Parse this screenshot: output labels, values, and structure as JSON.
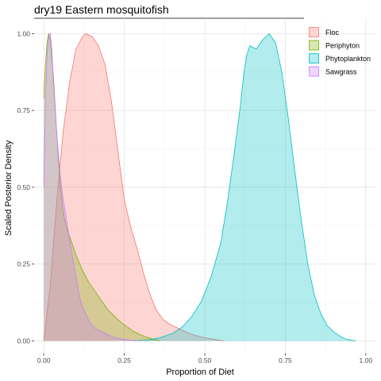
{
  "chart_data": {
    "type": "area",
    "title": "dry19 Eastern mosquitofish",
    "xlabel": "Proportion of Diet",
    "ylabel": "Scaled Posterior Density",
    "xlim": [
      -0.03,
      1.03
    ],
    "ylim": [
      -0.04,
      1.05
    ],
    "x_ticks": [
      0.0,
      0.25,
      0.5,
      0.75,
      1.0
    ],
    "x_tick_labels": [
      "0.00",
      "0.25",
      "0.50",
      "0.75",
      "1.00"
    ],
    "y_ticks": [
      0.0,
      0.25,
      0.5,
      0.75,
      1.0
    ],
    "y_tick_labels": [
      "0.00",
      "0.25",
      "0.50",
      "0.75",
      "1.00"
    ],
    "grid": true,
    "legend_position": "top-right",
    "series": [
      {
        "name": "Floc",
        "fill": "#F8766D",
        "stroke": "#F8766D",
        "points": [
          [
            0.0,
            0.0
          ],
          [
            0.02,
            0.18
          ],
          [
            0.04,
            0.45
          ],
          [
            0.06,
            0.68
          ],
          [
            0.08,
            0.84
          ],
          [
            0.1,
            0.95
          ],
          [
            0.12,
            0.99
          ],
          [
            0.13,
            1.0
          ],
          [
            0.15,
            0.99
          ],
          [
            0.17,
            0.96
          ],
          [
            0.19,
            0.9
          ],
          [
            0.21,
            0.78
          ],
          [
            0.23,
            0.62
          ],
          [
            0.25,
            0.46
          ],
          [
            0.27,
            0.37
          ],
          [
            0.29,
            0.3
          ],
          [
            0.31,
            0.22
          ],
          [
            0.33,
            0.15
          ],
          [
            0.35,
            0.1
          ],
          [
            0.37,
            0.07
          ],
          [
            0.39,
            0.055
          ],
          [
            0.41,
            0.045
          ],
          [
            0.43,
            0.035
          ],
          [
            0.45,
            0.025
          ],
          [
            0.47,
            0.018
          ],
          [
            0.5,
            0.01
          ],
          [
            0.53,
            0.005
          ],
          [
            0.56,
            0.0
          ]
        ]
      },
      {
        "name": "Periphyton",
        "fill": "#7CAE00",
        "stroke": "#7CAE00",
        "points": [
          [
            0.0,
            0.79
          ],
          [
            0.005,
            0.9
          ],
          [
            0.01,
            0.97
          ],
          [
            0.015,
            1.0
          ],
          [
            0.02,
            0.98
          ],
          [
            0.03,
            0.86
          ],
          [
            0.04,
            0.68
          ],
          [
            0.05,
            0.52
          ],
          [
            0.06,
            0.42
          ],
          [
            0.07,
            0.37
          ],
          [
            0.08,
            0.34
          ],
          [
            0.09,
            0.31
          ],
          [
            0.1,
            0.28
          ],
          [
            0.12,
            0.23
          ],
          [
            0.14,
            0.19
          ],
          [
            0.16,
            0.16
          ],
          [
            0.18,
            0.13
          ],
          [
            0.2,
            0.1
          ],
          [
            0.22,
            0.08
          ],
          [
            0.24,
            0.06
          ],
          [
            0.26,
            0.045
          ],
          [
            0.28,
            0.03
          ],
          [
            0.3,
            0.02
          ],
          [
            0.32,
            0.012
          ],
          [
            0.34,
            0.006
          ],
          [
            0.36,
            0.0
          ]
        ]
      },
      {
        "name": "Phytoplankton",
        "fill": "#00BFC4",
        "stroke": "#00BFC4",
        "points": [
          [
            0.28,
            0.0
          ],
          [
            0.32,
            0.003
          ],
          [
            0.36,
            0.01
          ],
          [
            0.4,
            0.025
          ],
          [
            0.43,
            0.045
          ],
          [
            0.46,
            0.08
          ],
          [
            0.49,
            0.13
          ],
          [
            0.52,
            0.21
          ],
          [
            0.55,
            0.32
          ],
          [
            0.57,
            0.45
          ],
          [
            0.59,
            0.6
          ],
          [
            0.61,
            0.76
          ],
          [
            0.62,
            0.86
          ],
          [
            0.63,
            0.93
          ],
          [
            0.64,
            0.96
          ],
          [
            0.66,
            0.95
          ],
          [
            0.68,
            0.98
          ],
          [
            0.7,
            1.0
          ],
          [
            0.72,
            0.97
          ],
          [
            0.74,
            0.87
          ],
          [
            0.76,
            0.72
          ],
          [
            0.78,
            0.55
          ],
          [
            0.8,
            0.39
          ],
          [
            0.82,
            0.25
          ],
          [
            0.84,
            0.15
          ],
          [
            0.86,
            0.09
          ],
          [
            0.88,
            0.05
          ],
          [
            0.9,
            0.03
          ],
          [
            0.92,
            0.015
          ],
          [
            0.94,
            0.005
          ],
          [
            0.97,
            0.0
          ]
        ]
      },
      {
        "name": "Sawgrass",
        "fill": "#C77CFF",
        "stroke": "#C77CFF",
        "points": [
          [
            0.0,
            0.5
          ],
          [
            0.005,
            0.78
          ],
          [
            0.01,
            0.93
          ],
          [
            0.015,
            0.99
          ],
          [
            0.02,
            1.0
          ],
          [
            0.025,
            0.95
          ],
          [
            0.03,
            0.84
          ],
          [
            0.04,
            0.68
          ],
          [
            0.05,
            0.55
          ],
          [
            0.06,
            0.46
          ],
          [
            0.07,
            0.4
          ],
          [
            0.08,
            0.33
          ],
          [
            0.09,
            0.27
          ],
          [
            0.1,
            0.21
          ],
          [
            0.11,
            0.15
          ],
          [
            0.12,
            0.11
          ],
          [
            0.13,
            0.09
          ],
          [
            0.14,
            0.065
          ],
          [
            0.15,
            0.05
          ],
          [
            0.16,
            0.04
          ],
          [
            0.18,
            0.03
          ],
          [
            0.2,
            0.02
          ],
          [
            0.22,
            0.01
          ],
          [
            0.25,
            0.005
          ],
          [
            0.28,
            0.002
          ],
          [
            0.3,
            0.0
          ]
        ]
      }
    ]
  }
}
